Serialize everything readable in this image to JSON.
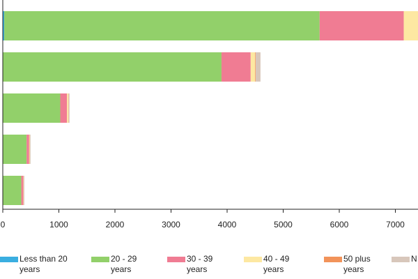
{
  "chart_data": {
    "type": "bar",
    "orientation": "horizontal",
    "stacked": true,
    "categories": [
      "",
      "",
      "",
      "",
      ""
    ],
    "series": [
      {
        "name": "Less than 20 years",
        "color": "#3aaee0",
        "values": [
          25,
          0,
          0,
          0,
          0
        ]
      },
      {
        "name": "20 - 29 years",
        "color": "#92d06a",
        "values": [
          5625,
          3900,
          1025,
          425,
          330
        ]
      },
      {
        "name": "30 - 39 years",
        "color": "#f07c93",
        "values": [
          1500,
          520,
          120,
          45,
          35
        ]
      },
      {
        "name": "40 - 49 years",
        "color": "#fde8a2",
        "values": [
          320,
          80,
          25,
          10,
          5
        ]
      },
      {
        "name": "50 plus years",
        "color": "#f2935a",
        "values": [
          0,
          10,
          5,
          5,
          5
        ]
      },
      {
        "name": "N",
        "color": "#d8c7bb",
        "values": [
          0,
          85,
          15,
          10,
          10
        ]
      }
    ],
    "x_ticks": [
      0,
      1000,
      2000,
      3000,
      4000,
      5000,
      6000,
      7000
    ],
    "x_tick_labels": [
      "0",
      "1000",
      "2000",
      "3000",
      "4000",
      "5000",
      "6000",
      "7000"
    ],
    "xlim": [
      0,
      7500
    ],
    "legend_position": "bottom",
    "grid": false
  },
  "legend": {
    "items": [
      {
        "line1": "Less than 20",
        "line2": "years",
        "color": "#3aaee0"
      },
      {
        "line1": "20 - 29",
        "line2": "years",
        "color": "#92d06a"
      },
      {
        "line1": "30 - 39",
        "line2": "years",
        "color": "#f07c93"
      },
      {
        "line1": "40 - 49",
        "line2": "years",
        "color": "#fde8a2"
      },
      {
        "line1": "50 plus",
        "line2": "years",
        "color": "#f2935a"
      },
      {
        "line1": "N",
        "line2": "",
        "color": "#d8c7bb"
      }
    ]
  }
}
